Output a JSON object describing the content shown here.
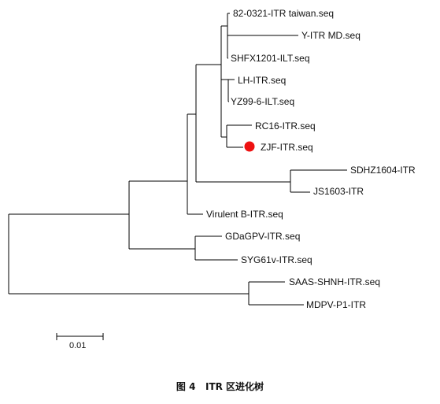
{
  "tree": {
    "leaves": [
      {
        "id": "L1",
        "label": "82-0321-ITR taiwan.seq"
      },
      {
        "id": "L2",
        "label": "Y-ITR MD.seq"
      },
      {
        "id": "L3",
        "label": "SHFX1201-ILT.seq"
      },
      {
        "id": "L4",
        "label": "LH-ITR.seq"
      },
      {
        "id": "L5",
        "label": "YZ99-6-ILT.seq"
      },
      {
        "id": "L6",
        "label": "RC16-ITR.seq"
      },
      {
        "id": "L7",
        "label": "ZJF-ITR.seq",
        "marker": {
          "shape": "circle",
          "color": "#ee1111"
        }
      },
      {
        "id": "L8",
        "label": "SDHZ1604-ITR"
      },
      {
        "id": "L9",
        "label": "JS1603-ITR"
      },
      {
        "id": "L10",
        "label": "Virulent B-ITR.seq"
      },
      {
        "id": "L11",
        "label": "GDaGPV-ITR.seq"
      },
      {
        "id": "L12",
        "label": "SYG61v-ITR.seq"
      },
      {
        "id": "L13",
        "label": "SAAS-SHNH-ITR.seq"
      },
      {
        "id": "L14",
        "label": "MDPV-P1-ITR"
      }
    ],
    "scale_bar": {
      "label": "0.01"
    },
    "line_color": "#000000"
  },
  "caption": {
    "text": "图 4   ITR 区进化树"
  }
}
